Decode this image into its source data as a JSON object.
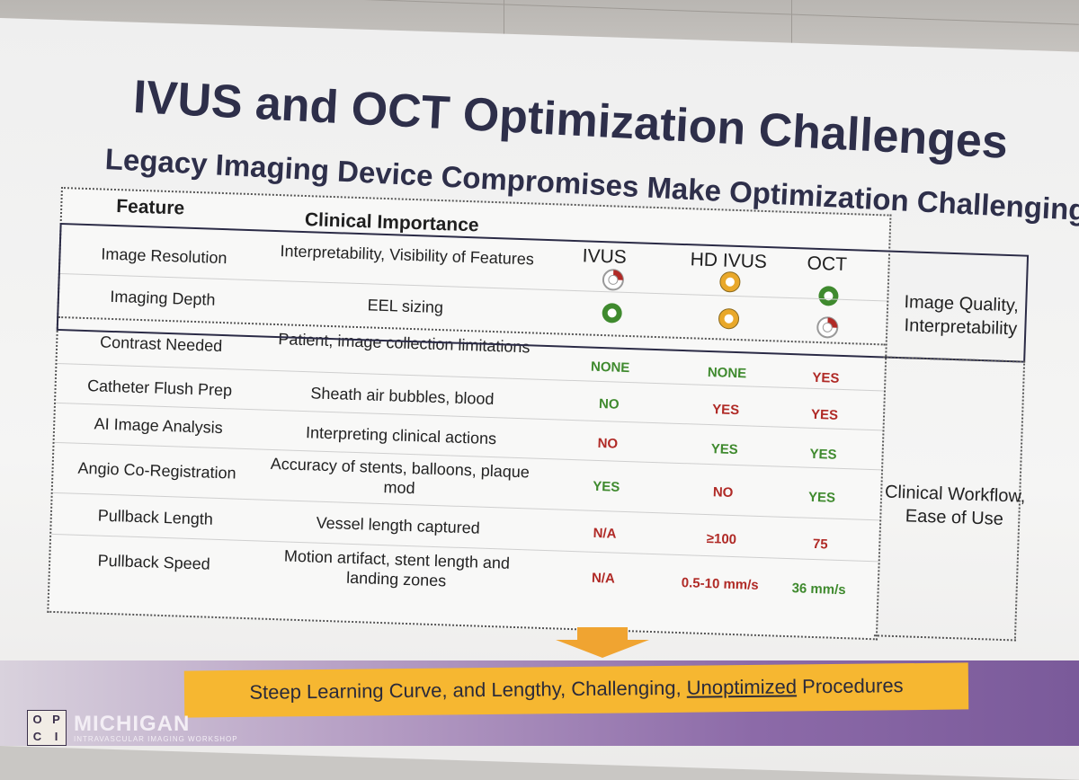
{
  "slide": {
    "title": "IVUS and OCT Optimization Challenges",
    "subtitle": "Legacy Imaging Device Compromises Make Optimization Challenging"
  },
  "table": {
    "headers": {
      "feature": "Feature",
      "clinical": "Clinical Importance",
      "ivus": "IVUS",
      "hd_ivus": "HD IVUS",
      "oct": "OCT"
    },
    "rows": [
      {
        "feature": "Image Resolution",
        "clinical": "Interpretability, Visibility of Features",
        "ivus": "",
        "hd_ivus": "",
        "oct": "",
        "indicators": {
          "ivus": "red",
          "hd_ivus": "orange",
          "oct": "green"
        }
      },
      {
        "feature": "Imaging Depth",
        "clinical": "EEL sizing",
        "ivus": "",
        "hd_ivus": "",
        "oct": "",
        "indicators": {
          "ivus": "green",
          "hd_ivus": "orange",
          "oct": "red"
        }
      },
      {
        "feature": "Contrast Needed",
        "clinical": "Patient, image collection limitations",
        "ivus": "NONE",
        "hd_ivus": "NONE",
        "oct": "YES"
      },
      {
        "feature": "Catheter Flush Prep",
        "clinical": "Sheath air bubbles, blood",
        "ivus": "NO",
        "hd_ivus": "YES",
        "oct": "YES"
      },
      {
        "feature": "AI Image Analysis",
        "clinical": "Interpreting clinical actions",
        "ivus": "NO",
        "hd_ivus": "YES",
        "oct": "YES"
      },
      {
        "feature": "Angio Co-Registration",
        "clinical": "Accuracy of stents, balloons, plaque mod",
        "ivus": "YES",
        "hd_ivus": "NO",
        "oct": "YES"
      },
      {
        "feature": "Pullback Length",
        "clinical": "Vessel length captured",
        "ivus": "N/A",
        "hd_ivus": "≥100",
        "oct": "75"
      },
      {
        "feature": "Pullback Speed",
        "clinical": "Motion artifact, stent length and landing zones",
        "ivus": "N/A",
        "hd_ivus": "0.5-10 mm/s",
        "oct": "36 mm/s"
      }
    ],
    "groups": {
      "quality": "Image Quality, Interpretability",
      "workflow": "Clinical Workflow, Ease of Use"
    }
  },
  "banner": {
    "part1": "Steep Learning Curve, and Lengthy, Challenging, ",
    "underlined": "Unoptimized",
    "part2": " Procedures"
  },
  "logo": {
    "letters": [
      "O",
      "P",
      "C",
      "I"
    ],
    "name": "MICHIGAN",
    "tagline": "INTRAVASCULAR IMAGING WORKSHOP"
  },
  "colors": {
    "good": "#3f8a2e",
    "bad": "#b02a26",
    "medium": "#e9a82a",
    "banner": "#f6b731",
    "title": "#2e2f4a"
  }
}
